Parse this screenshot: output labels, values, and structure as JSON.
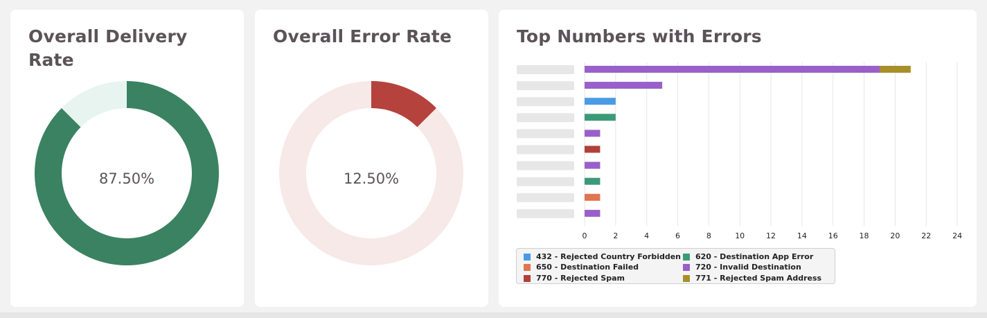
{
  "cards": {
    "delivery": {
      "title": "Overall Delivery Rate",
      "center_label": "87.50%"
    },
    "error": {
      "title": "Overall Error Rate",
      "center_label": "12.50%"
    },
    "top": {
      "title": "Top Numbers with Errors"
    }
  },
  "colors": {
    "delivery_main": "#3a8262",
    "delivery_rest": "#e7f4ef",
    "error_main": "#b5423c",
    "error_rest": "#f7e9e8",
    "row_placeholder": "#e3e3e3",
    "grid": "#e6e6e6"
  },
  "chart_data": [
    {
      "type": "pie",
      "title": "Overall Delivery Rate",
      "values": [
        87.5,
        12.5
      ],
      "center_label": "87.50%"
    },
    {
      "type": "pie",
      "title": "Overall Error Rate",
      "values": [
        12.5,
        87.5
      ],
      "center_label": "12.50%"
    },
    {
      "type": "bar",
      "orientation": "horizontal",
      "stacked": true,
      "title": "Top Numbers with Errors",
      "xlim": [
        0,
        24
      ],
      "x_ticks": [
        "0",
        "2",
        "4",
        "6",
        "8",
        "10",
        "12",
        "14",
        "16",
        "18",
        "20",
        "22",
        "24"
      ],
      "grid": true,
      "legend_position": "bottom-left",
      "legend": [
        {
          "code": "432",
          "label": "432 - Rejected Country Forbidden",
          "color": "#4a9ae6"
        },
        {
          "code": "620",
          "label": "620 - Destination App Error",
          "color": "#3c9a76"
        },
        {
          "code": "650",
          "label": "650 - Destination Failed",
          "color": "#e07550"
        },
        {
          "code": "720",
          "label": "720 - Invalid Destination",
          "color": "#9860c8"
        },
        {
          "code": "770",
          "label": "770 - Rejected Spam",
          "color": "#b0403a"
        },
        {
          "code": "771",
          "label": "771 - Rejected Spam Address",
          "color": "#a78f2a"
        }
      ],
      "rows": [
        {
          "segments": [
            {
              "code": "720",
              "value": 19
            },
            {
              "code": "771",
              "value": 2
            }
          ]
        },
        {
          "segments": [
            {
              "code": "720",
              "value": 5
            }
          ]
        },
        {
          "segments": [
            {
              "code": "432",
              "value": 2
            }
          ]
        },
        {
          "segments": [
            {
              "code": "620",
              "value": 2
            }
          ]
        },
        {
          "segments": [
            {
              "code": "720",
              "value": 1
            }
          ]
        },
        {
          "segments": [
            {
              "code": "770",
              "value": 1
            }
          ]
        },
        {
          "segments": [
            {
              "code": "720",
              "value": 1
            }
          ]
        },
        {
          "segments": [
            {
              "code": "620",
              "value": 1
            }
          ]
        },
        {
          "segments": [
            {
              "code": "650",
              "value": 1
            }
          ]
        },
        {
          "segments": [
            {
              "code": "720",
              "value": 1
            }
          ]
        }
      ]
    }
  ]
}
